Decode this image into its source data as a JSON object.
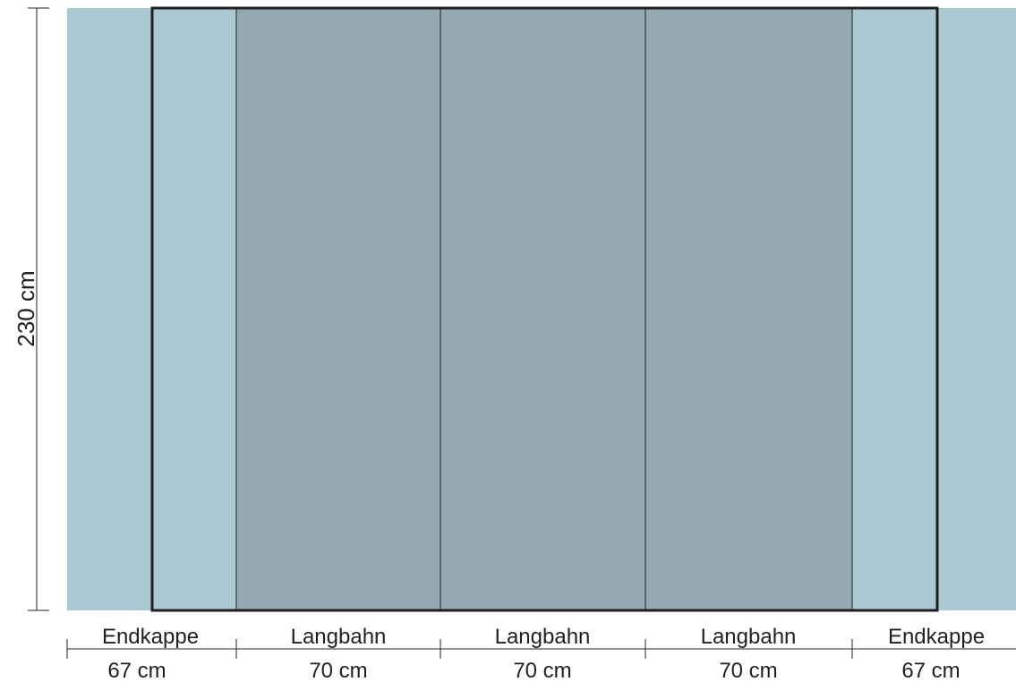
{
  "height_label": "230 cm",
  "panels": [
    {
      "type": "Endkappe",
      "width": "67 cm",
      "color": "#abc8d3"
    },
    {
      "type": "Langbahn",
      "width": "70 cm",
      "color": "#94a9b4"
    },
    {
      "type": "Langbahn",
      "width": "70 cm",
      "color": "#94a9b4"
    },
    {
      "type": "Langbahn",
      "width": "70 cm",
      "color": "#94a9b4"
    },
    {
      "type": "Endkappe",
      "width": "67 cm",
      "color": "#abc8d3"
    }
  ],
  "colors": {
    "line": "#231f20",
    "frame": "#231f20"
  }
}
